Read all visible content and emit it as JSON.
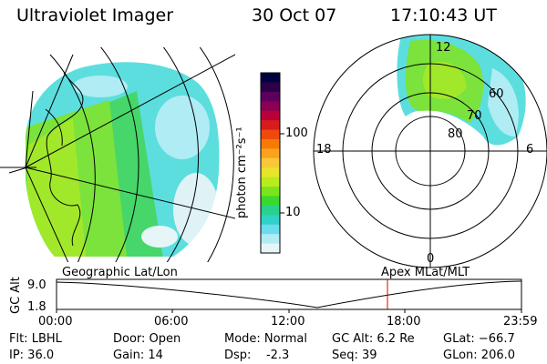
{
  "header": {
    "instrument": "Ultraviolet Imager",
    "date": "30 Oct 07",
    "time": "17:10:43 UT"
  },
  "colorbar": {
    "label": "photon cm⁻²s⁻¹",
    "ticks": [
      "100",
      "10"
    ],
    "colors": [
      "#000040",
      "#2b0048",
      "#5c0060",
      "#8a0055",
      "#b8003a",
      "#d81c1c",
      "#ee4a0e",
      "#f87a06",
      "#fca21c",
      "#f8c838",
      "#e8e42a",
      "#b8ec1c",
      "#7ce41c",
      "#3ad92e",
      "#28d28c",
      "#2ed2c8",
      "#6adcec",
      "#b0ecf4",
      "#e6f6f8"
    ]
  },
  "polar": {
    "labels": {
      "top": "12",
      "bottom": "0",
      "left": "18",
      "right": "6"
    },
    "lat_labels": [
      "60",
      "70",
      "80"
    ]
  },
  "timeline": {
    "axis_label": "GC Alt",
    "y_ticks": [
      "9.0",
      "1.8"
    ],
    "left_title": "Geographic Lat/Lon",
    "right_title": "Apex MLat/MLT",
    "x_ticks": [
      "00:00",
      "06:00",
      "12:00",
      "18:00",
      "23:59"
    ]
  },
  "info": {
    "flt": "Flt: LBHL",
    "ip": "IP: 36.0",
    "door": "Door: Open",
    "gain": "Gain: 14",
    "mode": "Mode: Normal",
    "dsp": "Dsp:    -2.3",
    "gcalt": "GC Alt: 6.2 Re",
    "seq": "Seq: 39",
    "glat": "GLat: −66.7",
    "glon": "GLon: 206.0"
  }
}
